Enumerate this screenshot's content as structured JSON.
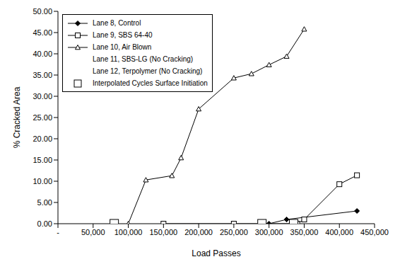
{
  "chart_data": {
    "type": "line",
    "x_label": "Load Passes",
    "y_label": "% Cracked Area",
    "xlim": [
      0,
      450000
    ],
    "xticks": [
      {
        "value": 0,
        "label": "-"
      },
      {
        "value": 50000,
        "label": "50,000"
      },
      {
        "value": 100000,
        "label": "100,000"
      },
      {
        "value": 150000,
        "label": "150,000"
      },
      {
        "value": 200000,
        "label": "200,000"
      },
      {
        "value": 250000,
        "label": "250,000"
      },
      {
        "value": 300000,
        "label": "300,000"
      },
      {
        "value": 350000,
        "label": "350,000"
      },
      {
        "value": 400000,
        "label": "400,000"
      },
      {
        "value": 450000,
        "label": "450,000"
      }
    ],
    "ylim": [
      0,
      50
    ],
    "yticks": [
      {
        "value": 0,
        "label": "0.00"
      },
      {
        "value": 5,
        "label": "5.00"
      },
      {
        "value": 10,
        "label": "10.00"
      },
      {
        "value": 15,
        "label": "15.00"
      },
      {
        "value": 20,
        "label": "20.00"
      },
      {
        "value": 25,
        "label": "25.00"
      },
      {
        "value": 30,
        "label": "30.00"
      },
      {
        "value": 35,
        "label": "35.00"
      },
      {
        "value": 40,
        "label": "40.00"
      },
      {
        "value": 45,
        "label": "45.00"
      },
      {
        "value": 50,
        "label": "50.00"
      }
    ],
    "grid": false,
    "legend": "upper left",
    "series": [
      {
        "name": "Lane 8, Control",
        "color": "#000000",
        "marker": "diamond",
        "line_style": "solid",
        "x": [
          300000,
          325000,
          425000
        ],
        "values": [
          0,
          1.0,
          3.0
        ]
      },
      {
        "name": "Lane 9, SBS 64-40",
        "color": "#000000",
        "marker": "open_square",
        "line_style": "solid",
        "x": [
          150000,
          250000,
          340000,
          350000,
          400000,
          425000
        ],
        "values": [
          0,
          0,
          0,
          1.0,
          9.3,
          11.4
        ]
      },
      {
        "name": "Lane 10, Air Blown",
        "color": "#000000",
        "marker": "open_triangle",
        "line_style": "solid",
        "x": [
          100000,
          125000,
          162000,
          175000,
          200000,
          250000,
          275000,
          300000,
          325000,
          350000
        ],
        "values": [
          0,
          10.3,
          11.3,
          15.5,
          27.0,
          34.3,
          35.3,
          37.4,
          39.4,
          45.8
        ]
      },
      {
        "name": "Lane 11, SBS-LG (No Cracking)",
        "color": "#000000",
        "marker": "none",
        "line_style": "none",
        "x": [],
        "values": []
      },
      {
        "name": "Lane 12, Terpolymer (No Cracking)",
        "color": "#000000",
        "marker": "none",
        "line_style": "none",
        "x": [],
        "values": []
      },
      {
        "name": "Interpolated Cycles Surface Initiation",
        "type": "scatter",
        "color": "#000000",
        "marker": "open_square",
        "line_style": "none",
        "x": [
          80000,
          290000,
          335000
        ],
        "values": [
          0,
          0,
          0
        ]
      }
    ]
  }
}
